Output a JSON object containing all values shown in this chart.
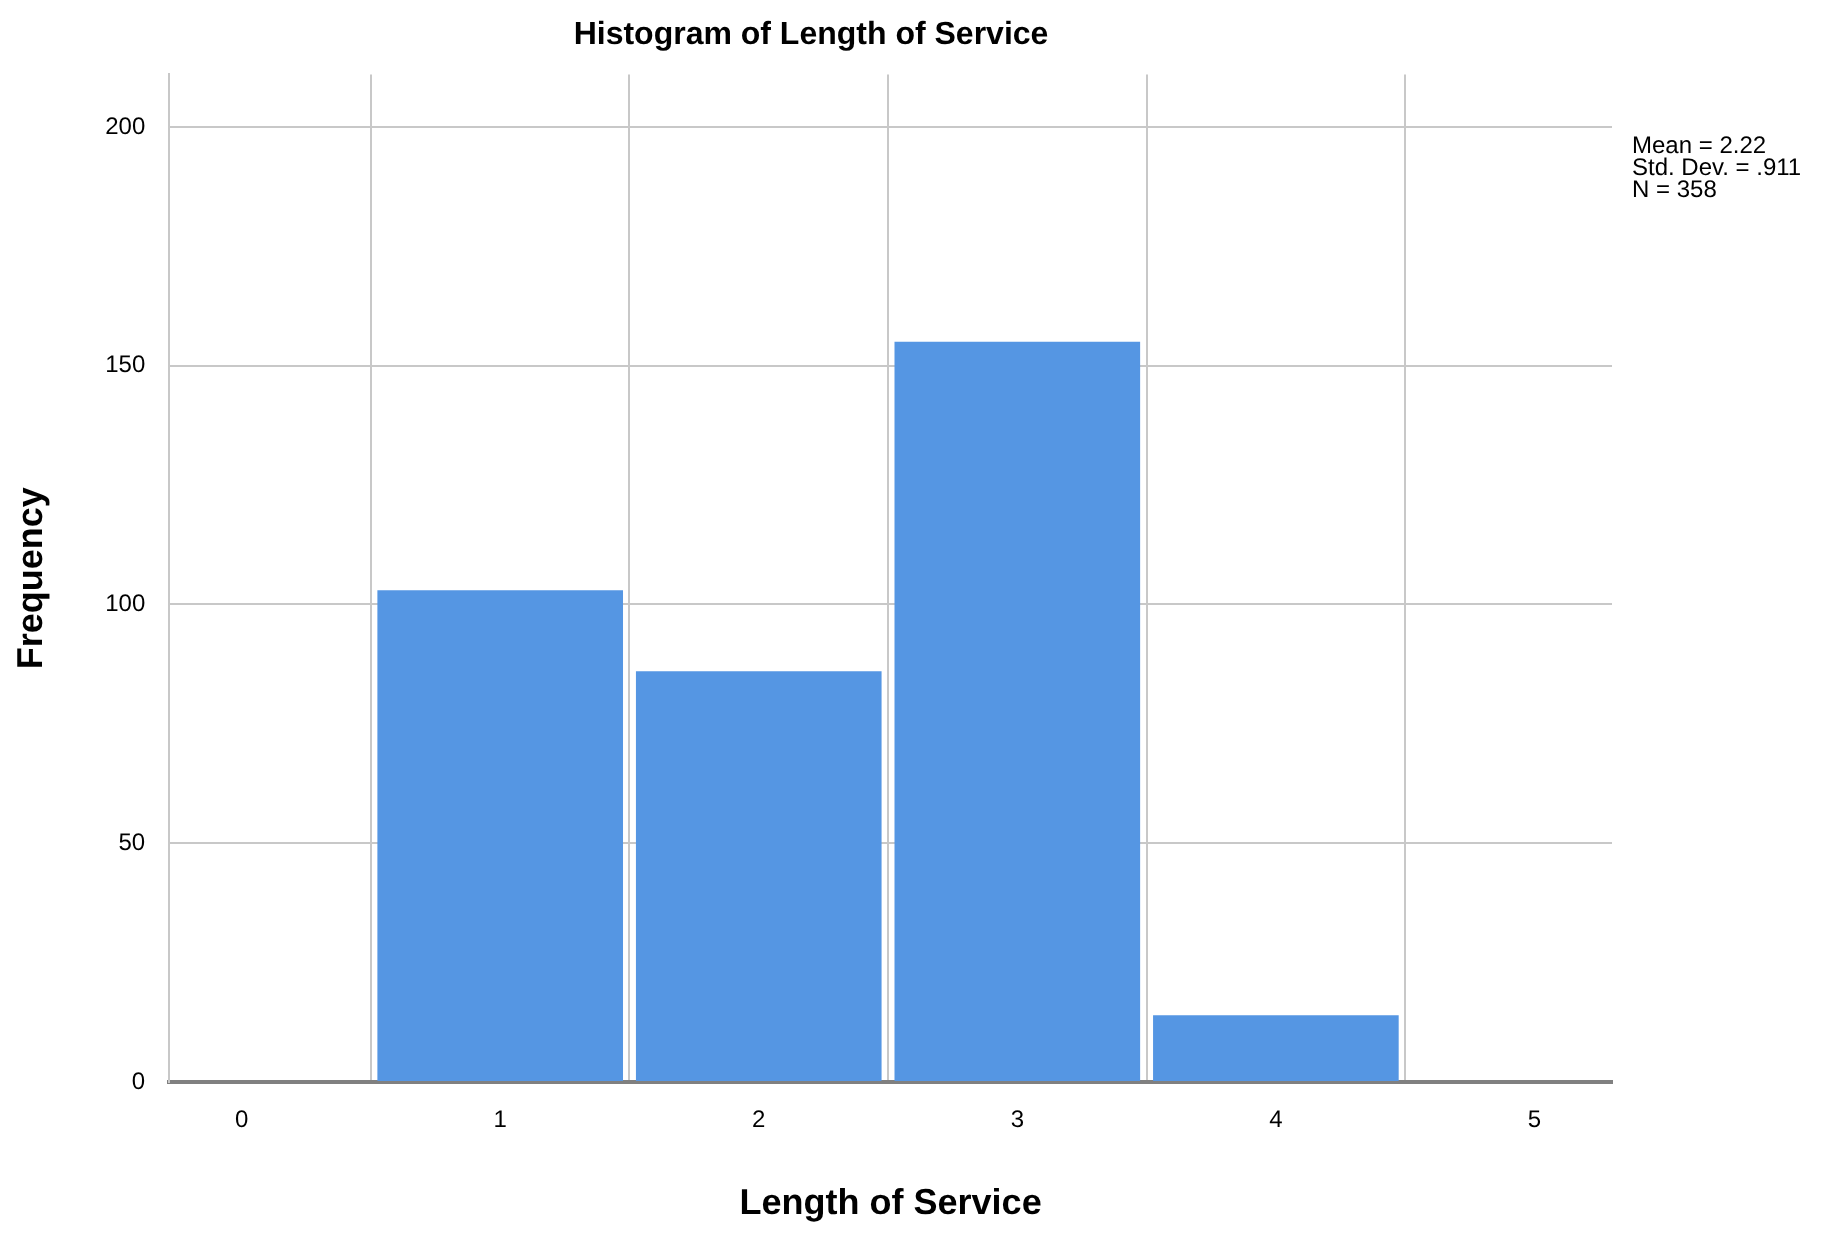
{
  "chart_data": {
    "type": "histogram",
    "title": "Histogram of Length of Service",
    "xlabel": "Length of Service",
    "ylabel": "Frequency",
    "bins": [
      0.5,
      1.5,
      2.5,
      3.5,
      4.5
    ],
    "values": [
      103,
      86,
      155,
      14
    ],
    "color": "#5596e3",
    "xlim": [
      -0.28,
      5.3
    ],
    "xticks": [
      0,
      1,
      2,
      3,
      4,
      5
    ],
    "ylim": [
      0,
      211
    ],
    "yticks": [
      0,
      50,
      100,
      150,
      200
    ],
    "grid": true,
    "legend": false,
    "annotations": [
      "Mean = 2.22",
      "Std. Dev. = .911",
      "N = 358"
    ]
  }
}
